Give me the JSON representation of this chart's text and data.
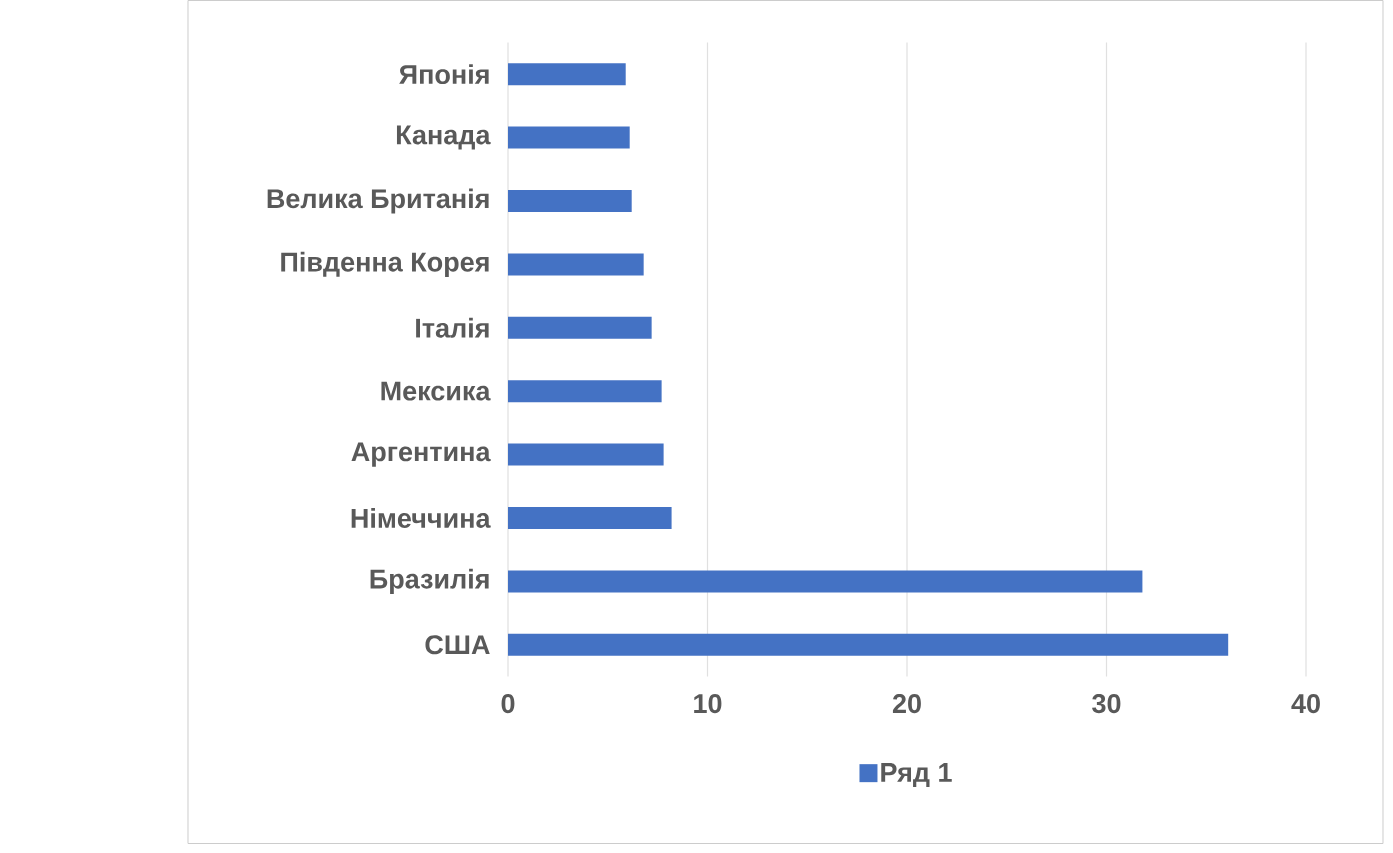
{
  "chart_data": {
    "type": "bar",
    "orientation": "horizontal",
    "categories": [
      "Японія",
      "Канада",
      "Велика Британія",
      "Південна Корея",
      "Італія",
      "Мексика",
      "Аргентина",
      "Німеччина",
      "Бразилія",
      "США"
    ],
    "series": [
      {
        "name": "Ряд 1",
        "color": "#4472c4",
        "values": [
          5.9,
          6.1,
          6.2,
          6.8,
          7.2,
          7.7,
          7.8,
          8.2,
          31.8,
          36.1
        ]
      }
    ],
    "xlim": [
      0,
      40
    ],
    "xticks": [
      0,
      10,
      20,
      30,
      40
    ],
    "grid": "x",
    "legend": "bottom"
  }
}
